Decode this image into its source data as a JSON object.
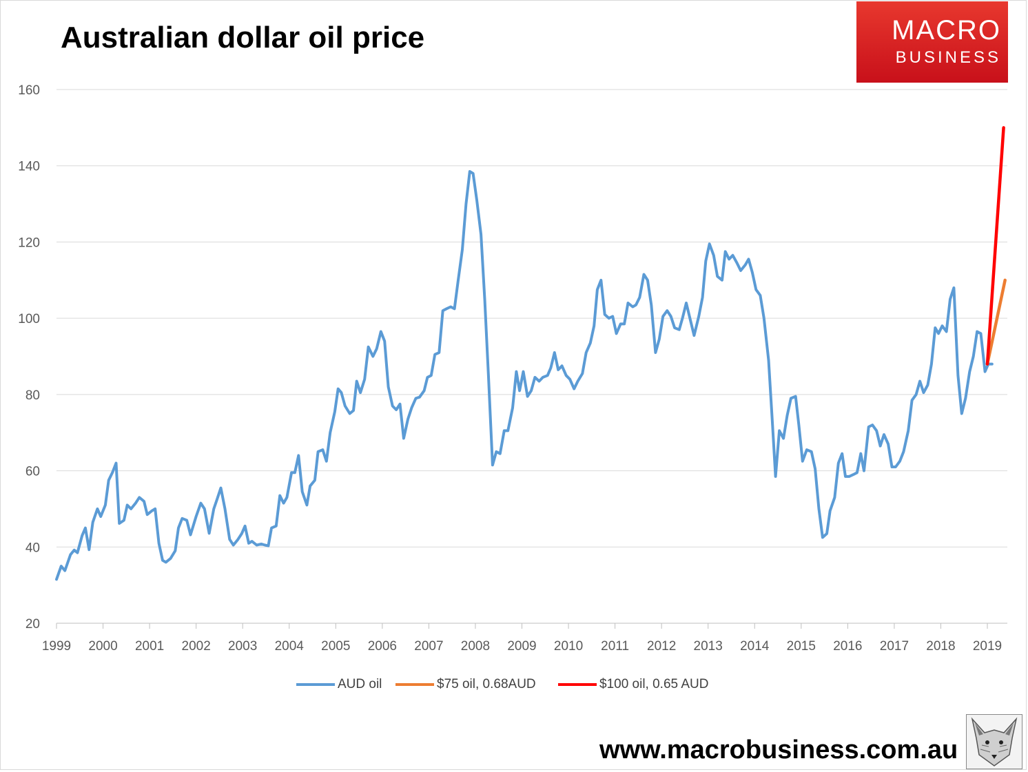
{
  "title": "Australian dollar oil price",
  "logo": {
    "line1": "MACRO",
    "line2": "BUSINESS",
    "color": "#d7151d"
  },
  "footer": {
    "url": "www.macrobusiness.com.au",
    "icon": "fox-icon"
  },
  "chart_data": {
    "type": "line",
    "title": "Australian dollar oil price",
    "xlabel": "",
    "ylabel": "",
    "xlim": [
      1999,
      2019.4
    ],
    "ylim": [
      20,
      160
    ],
    "y_ticks": [
      20,
      40,
      60,
      80,
      100,
      120,
      140,
      160
    ],
    "x_ticks": [
      "1999",
      "2000",
      "2001",
      "2002",
      "2003",
      "2004",
      "2005",
      "2006",
      "2007",
      "2008",
      "2009",
      "2010",
      "2011",
      "2012",
      "2013",
      "2014",
      "2015",
      "2016",
      "2017",
      "2018",
      "2019"
    ],
    "grid": "horizontal",
    "legend_position": "bottom",
    "series": [
      {
        "name": "AUD oil",
        "color": "#5b9bd5",
        "points": [
          [
            1999.0,
            31.5
          ],
          [
            1999.1,
            35
          ],
          [
            1999.18,
            33.8
          ],
          [
            1999.3,
            38
          ],
          [
            1999.38,
            39.2
          ],
          [
            1999.45,
            38.5
          ],
          [
            1999.55,
            43
          ],
          [
            1999.62,
            45
          ],
          [
            1999.7,
            39.3
          ],
          [
            1999.78,
            46.5
          ],
          [
            1999.88,
            50
          ],
          [
            1999.95,
            48
          ],
          [
            2000.05,
            51
          ],
          [
            2000.12,
            57.5
          ],
          [
            2000.2,
            59.5
          ],
          [
            2000.28,
            62
          ],
          [
            2000.35,
            46.2
          ],
          [
            2000.45,
            47
          ],
          [
            2000.52,
            51
          ],
          [
            2000.6,
            50
          ],
          [
            2000.7,
            51.5
          ],
          [
            2000.78,
            53
          ],
          [
            2000.88,
            52
          ],
          [
            2000.95,
            48.5
          ],
          [
            2001.05,
            49.5
          ],
          [
            2001.12,
            50
          ],
          [
            2001.2,
            41
          ],
          [
            2001.28,
            36.5
          ],
          [
            2001.35,
            36
          ],
          [
            2001.45,
            37
          ],
          [
            2001.55,
            39
          ],
          [
            2001.62,
            45
          ],
          [
            2001.7,
            47.5
          ],
          [
            2001.8,
            47
          ],
          [
            2001.88,
            43.2
          ],
          [
            2002.0,
            48
          ],
          [
            2002.1,
            51.5
          ],
          [
            2002.18,
            50
          ],
          [
            2002.28,
            43.6
          ],
          [
            2002.38,
            50
          ],
          [
            2002.45,
            52.5
          ],
          [
            2002.53,
            55.5
          ],
          [
            2002.62,
            50
          ],
          [
            2002.72,
            42
          ],
          [
            2002.8,
            40.5
          ],
          [
            2002.9,
            42
          ],
          [
            2002.98,
            43.5
          ],
          [
            2003.05,
            45.5
          ],
          [
            2003.13,
            41
          ],
          [
            2003.2,
            41.5
          ],
          [
            2003.3,
            40.5
          ],
          [
            2003.4,
            40.8
          ],
          [
            2003.48,
            40.5
          ],
          [
            2003.55,
            40.3
          ],
          [
            2003.62,
            45
          ],
          [
            2003.72,
            45.5
          ],
          [
            2003.8,
            53.5
          ],
          [
            2003.88,
            51.5
          ],
          [
            2003.95,
            53
          ],
          [
            2004.05,
            59.5
          ],
          [
            2004.12,
            59.5
          ],
          [
            2004.2,
            64
          ],
          [
            2004.28,
            54.5
          ],
          [
            2004.38,
            51
          ],
          [
            2004.45,
            56
          ],
          [
            2004.55,
            57.5
          ],
          [
            2004.62,
            65
          ],
          [
            2004.72,
            65.5
          ],
          [
            2004.8,
            62.5
          ],
          [
            2004.88,
            70
          ],
          [
            2004.98,
            75.5
          ],
          [
            2005.05,
            81.5
          ],
          [
            2005.12,
            80.5
          ],
          [
            2005.2,
            77
          ],
          [
            2005.3,
            75
          ],
          [
            2005.38,
            75.8
          ],
          [
            2005.45,
            83.5
          ],
          [
            2005.53,
            80.5
          ],
          [
            2005.62,
            84
          ],
          [
            2005.7,
            92.5
          ],
          [
            2005.8,
            90
          ],
          [
            2005.88,
            92
          ],
          [
            2005.97,
            96.5
          ],
          [
            2006.05,
            94
          ],
          [
            2006.13,
            82
          ],
          [
            2006.22,
            77
          ],
          [
            2006.3,
            76
          ],
          [
            2006.38,
            77.5
          ],
          [
            2006.46,
            68.5
          ],
          [
            2006.55,
            73.5
          ],
          [
            2006.63,
            76.5
          ],
          [
            2006.72,
            79
          ],
          [
            2006.8,
            79.3
          ],
          [
            2006.9,
            81
          ],
          [
            2006.97,
            84.5
          ],
          [
            2007.05,
            85
          ],
          [
            2007.13,
            90.5
          ],
          [
            2007.22,
            91
          ],
          [
            2007.3,
            102
          ],
          [
            2007.38,
            102.5
          ],
          [
            2007.47,
            103
          ],
          [
            2007.55,
            102.5
          ],
          [
            2007.63,
            110
          ],
          [
            2007.72,
            118
          ],
          [
            2007.8,
            130
          ],
          [
            2007.88,
            138.5
          ],
          [
            2007.95,
            138
          ],
          [
            2008.03,
            131
          ],
          [
            2008.12,
            122
          ],
          [
            2008.2,
            105
          ],
          [
            2008.28,
            85
          ],
          [
            2008.37,
            61.5
          ],
          [
            2008.45,
            65
          ],
          [
            2008.53,
            64.5
          ],
          [
            2008.62,
            70.5
          ],
          [
            2008.7,
            70.5
          ],
          [
            2008.8,
            76.5
          ],
          [
            2008.88,
            86
          ],
          [
            2008.95,
            81
          ],
          [
            2009.03,
            86
          ],
          [
            2009.12,
            79.5
          ],
          [
            2009.2,
            81
          ],
          [
            2009.28,
            84.5
          ],
          [
            2009.37,
            83.5
          ],
          [
            2009.45,
            84.5
          ],
          [
            2009.55,
            85
          ],
          [
            2009.62,
            87
          ],
          [
            2009.7,
            91
          ],
          [
            2009.78,
            86.5
          ],
          [
            2009.86,
            87.5
          ],
          [
            2009.95,
            85
          ],
          [
            2010.03,
            84
          ],
          [
            2010.12,
            81.5
          ],
          [
            2010.2,
            83.5
          ],
          [
            2010.3,
            85.5
          ],
          [
            2010.38,
            91
          ],
          [
            2010.47,
            93.5
          ],
          [
            2010.55,
            98
          ],
          [
            2010.62,
            107.5
          ],
          [
            2010.7,
            110
          ],
          [
            2010.78,
            101
          ],
          [
            2010.87,
            100
          ],
          [
            2010.95,
            100.5
          ],
          [
            2011.03,
            96
          ],
          [
            2011.12,
            98.5
          ],
          [
            2011.2,
            98.5
          ],
          [
            2011.28,
            104
          ],
          [
            2011.38,
            103
          ],
          [
            2011.45,
            103.5
          ],
          [
            2011.53,
            105.5
          ],
          [
            2011.62,
            111.5
          ],
          [
            2011.7,
            110
          ],
          [
            2011.78,
            103.5
          ],
          [
            2011.87,
            91
          ],
          [
            2011.95,
            94.5
          ],
          [
            2012.03,
            100.5
          ],
          [
            2012.12,
            102
          ],
          [
            2012.2,
            100.5
          ],
          [
            2012.28,
            97.5
          ],
          [
            2012.38,
            97
          ],
          [
            2012.45,
            100
          ],
          [
            2012.53,
            104
          ],
          [
            2012.62,
            99.5
          ],
          [
            2012.7,
            95.5
          ],
          [
            2012.8,
            100.5
          ],
          [
            2012.88,
            105.5
          ],
          [
            2012.95,
            115
          ],
          [
            2013.03,
            119.5
          ],
          [
            2013.12,
            116.5
          ],
          [
            2013.2,
            111
          ],
          [
            2013.3,
            110
          ],
          [
            2013.37,
            117.5
          ],
          [
            2013.45,
            115.5
          ],
          [
            2013.53,
            116.5
          ],
          [
            2013.62,
            114.5
          ],
          [
            2013.7,
            112.5
          ],
          [
            2013.8,
            114
          ],
          [
            2013.87,
            115.5
          ],
          [
            2013.95,
            112
          ],
          [
            2014.03,
            107.5
          ],
          [
            2014.12,
            106
          ],
          [
            2014.2,
            100
          ],
          [
            2014.3,
            89
          ],
          [
            2014.38,
            73
          ],
          [
            2014.45,
            58.5
          ],
          [
            2014.53,
            70.5
          ],
          [
            2014.62,
            68.5
          ],
          [
            2014.7,
            74.5
          ],
          [
            2014.78,
            79
          ],
          [
            2014.88,
            79.5
          ],
          [
            2014.95,
            72
          ],
          [
            2015.03,
            62.5
          ],
          [
            2015.12,
            65.5
          ],
          [
            2015.22,
            65
          ],
          [
            2015.3,
            60.5
          ],
          [
            2015.38,
            50
          ],
          [
            2015.46,
            42.5
          ],
          [
            2015.55,
            43.5
          ],
          [
            2015.62,
            49.5
          ],
          [
            2015.72,
            53
          ],
          [
            2015.8,
            62
          ],
          [
            2015.88,
            64.5
          ],
          [
            2015.95,
            58.5
          ],
          [
            2016.03,
            58.5
          ],
          [
            2016.12,
            59
          ],
          [
            2016.2,
            59.5
          ],
          [
            2016.28,
            64.5
          ],
          [
            2016.35,
            60
          ],
          [
            2016.45,
            71.5
          ],
          [
            2016.53,
            72
          ],
          [
            2016.62,
            70.5
          ],
          [
            2016.7,
            66.5
          ],
          [
            2016.78,
            69.5
          ],
          [
            2016.87,
            67
          ],
          [
            2016.95,
            61
          ],
          [
            2017.03,
            61
          ],
          [
            2017.12,
            62.5
          ],
          [
            2017.2,
            65
          ],
          [
            2017.3,
            70.5
          ],
          [
            2017.38,
            78.5
          ],
          [
            2017.47,
            80
          ],
          [
            2017.55,
            83.5
          ],
          [
            2017.63,
            80.5
          ],
          [
            2017.72,
            82.5
          ],
          [
            2017.8,
            88
          ],
          [
            2017.88,
            97.5
          ],
          [
            2017.95,
            96
          ],
          [
            2018.03,
            98
          ],
          [
            2018.12,
            96.5
          ],
          [
            2018.2,
            105
          ],
          [
            2018.28,
            108
          ],
          [
            2018.37,
            85
          ],
          [
            2018.45,
            75
          ],
          [
            2018.53,
            79
          ],
          [
            2018.62,
            86
          ],
          [
            2018.7,
            90
          ],
          [
            2018.78,
            96.5
          ],
          [
            2018.86,
            96
          ],
          [
            2018.95,
            86
          ],
          [
            2019.02,
            88
          ],
          [
            2019.1,
            88
          ]
        ]
      },
      {
        "name": "$75 oil, 0.68AUD",
        "color": "#ed7d31",
        "points": [
          [
            2019.0,
            88
          ],
          [
            2019.38,
            110
          ]
        ]
      },
      {
        "name": "$100 oil, 0.65 AUD",
        "color": "#ff0000",
        "points": [
          [
            2019.0,
            88
          ],
          [
            2019.35,
            150
          ]
        ]
      }
    ]
  }
}
